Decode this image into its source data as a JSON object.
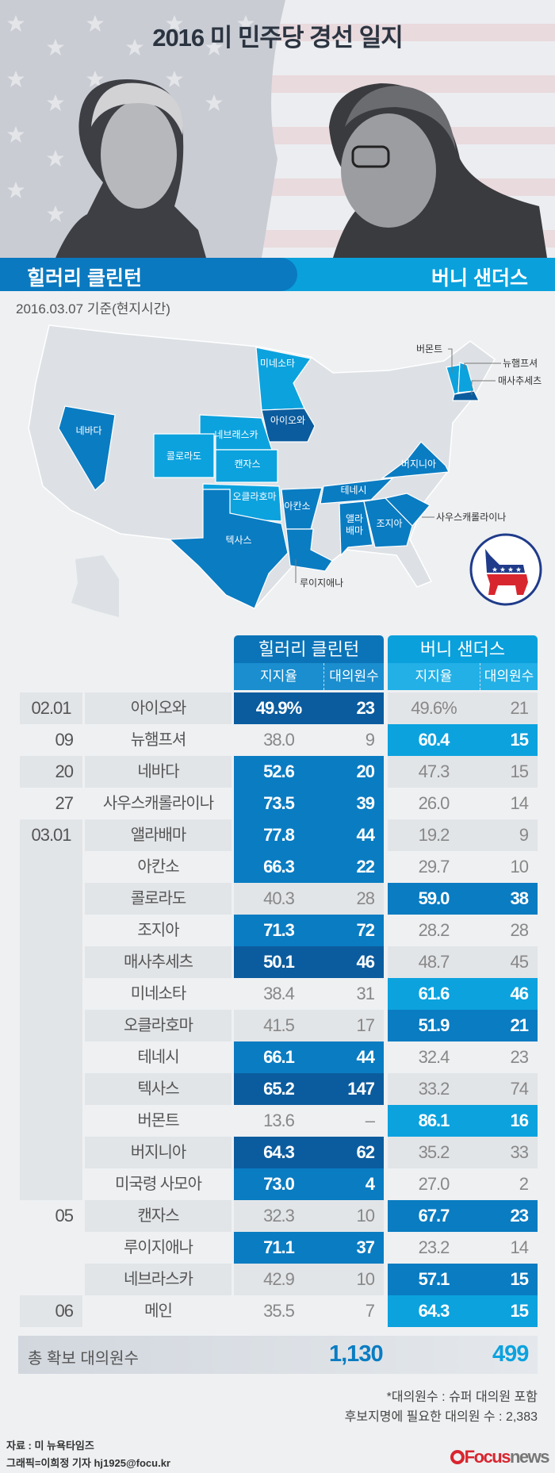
{
  "title": "2016 미 민주당 경선 일지",
  "candidates": {
    "hillary": "힐러리 클린턴",
    "bernie": "버니 샌더스"
  },
  "as_of": "2016.03.07 기준(현지시간)",
  "colors": {
    "dark": "#0b5c9e",
    "medium": "#0a7cc2",
    "light": "#0ca2de",
    "row_grey": "#e2e5e8",
    "row_light": "#eef0f2",
    "hillary": "#0a79c0",
    "bernie": "#0aa0dc",
    "map_base": "#dde1e5"
  },
  "map": {
    "states": [
      {
        "label": "네바다",
        "shade": "medium"
      },
      {
        "label": "미네소타",
        "shade": "light"
      },
      {
        "label": "아이오와",
        "shade": "dark"
      },
      {
        "label": "네브래스카",
        "shade": "light"
      },
      {
        "label": "콜로라도",
        "shade": "light"
      },
      {
        "label": "캔자스",
        "shade": "light"
      },
      {
        "label": "오클라호마",
        "shade": "light"
      },
      {
        "label": "텍사스",
        "shade": "medium"
      },
      {
        "label": "아칸소",
        "shade": "medium"
      },
      {
        "label": "루이지애나",
        "shade": "medium"
      },
      {
        "label": "테네시",
        "shade": "medium"
      },
      {
        "label": "앨라배마",
        "shade": "medium"
      },
      {
        "label": "조지아",
        "shade": "medium"
      },
      {
        "label": "사우스캐롤라이나",
        "shade": "medium"
      },
      {
        "label": "버지니아",
        "shade": "medium"
      },
      {
        "label": "버몬트",
        "shade": "light"
      },
      {
        "label": "뉴햄프셔",
        "shade": "light"
      },
      {
        "label": "매사추세츠",
        "shade": "dark"
      }
    ],
    "alabama_line1": "앨라",
    "alabama_line2": "배마",
    "logo": "democratic-donkey-icon"
  },
  "table": {
    "group_headers": [
      "힐러리 클린턴",
      "버니 샌더스"
    ],
    "sub_headers": [
      "지지율",
      "대의원수",
      "지지율",
      "대의원수"
    ],
    "date_groups": [
      {
        "label": "02.01",
        "rows": 1,
        "shaded": true
      },
      {
        "label": "09",
        "rows": 1,
        "shaded": false
      },
      {
        "label": "20",
        "rows": 1,
        "shaded": true
      },
      {
        "label": "27",
        "rows": 1,
        "shaded": false
      },
      {
        "label": "03.01",
        "rows": 12,
        "shaded": true
      },
      {
        "label": "05",
        "rows": 3,
        "shaded": false
      },
      {
        "label": "06",
        "rows": 1,
        "shaded": true
      }
    ],
    "rows": [
      {
        "state": "아이오와",
        "h_pct": "49.9%",
        "h_del": "23",
        "b_pct": "49.6%",
        "b_del": "21",
        "winner": "hillary",
        "shade": "dark"
      },
      {
        "state": "뉴햄프셔",
        "h_pct": "38.0",
        "h_del": "9",
        "b_pct": "60.4",
        "b_del": "15",
        "winner": "bernie",
        "shade": "light"
      },
      {
        "state": "네바다",
        "h_pct": "52.6",
        "h_del": "20",
        "b_pct": "47.3",
        "b_del": "15",
        "winner": "hillary",
        "shade": "medium"
      },
      {
        "state": "사우스캐롤라이나",
        "h_pct": "73.5",
        "h_del": "39",
        "b_pct": "26.0",
        "b_del": "14",
        "winner": "hillary",
        "shade": "medium"
      },
      {
        "state": "앨라배마",
        "h_pct": "77.8",
        "h_del": "44",
        "b_pct": "19.2",
        "b_del": "9",
        "winner": "hillary",
        "shade": "medium"
      },
      {
        "state": "아칸소",
        "h_pct": "66.3",
        "h_del": "22",
        "b_pct": "29.7",
        "b_del": "10",
        "winner": "hillary",
        "shade": "medium"
      },
      {
        "state": "콜로라도",
        "h_pct": "40.3",
        "h_del": "28",
        "b_pct": "59.0",
        "b_del": "38",
        "winner": "bernie",
        "shade": "medium"
      },
      {
        "state": "조지아",
        "h_pct": "71.3",
        "h_del": "72",
        "b_pct": "28.2",
        "b_del": "28",
        "winner": "hillary",
        "shade": "medium"
      },
      {
        "state": "매사추세츠",
        "h_pct": "50.1",
        "h_del": "46",
        "b_pct": "48.7",
        "b_del": "45",
        "winner": "hillary",
        "shade": "dark"
      },
      {
        "state": "미네소타",
        "h_pct": "38.4",
        "h_del": "31",
        "b_pct": "61.6",
        "b_del": "46",
        "winner": "bernie",
        "shade": "light"
      },
      {
        "state": "오클라호마",
        "h_pct": "41.5",
        "h_del": "17",
        "b_pct": "51.9",
        "b_del": "21",
        "winner": "bernie",
        "shade": "medium"
      },
      {
        "state": "테네시",
        "h_pct": "66.1",
        "h_del": "44",
        "b_pct": "32.4",
        "b_del": "23",
        "winner": "hillary",
        "shade": "medium"
      },
      {
        "state": "텍사스",
        "h_pct": "65.2",
        "h_del": "147",
        "b_pct": "33.2",
        "b_del": "74",
        "winner": "hillary",
        "shade": "dark"
      },
      {
        "state": "버몬트",
        "h_pct": "13.6",
        "h_del": "–",
        "b_pct": "86.1",
        "b_del": "16",
        "winner": "bernie",
        "shade": "light"
      },
      {
        "state": "버지니아",
        "h_pct": "64.3",
        "h_del": "62",
        "b_pct": "35.2",
        "b_del": "33",
        "winner": "hillary",
        "shade": "dark"
      },
      {
        "state": "미국령 사모아",
        "h_pct": "73.0",
        "h_del": "4",
        "b_pct": "27.0",
        "b_del": "2",
        "winner": "hillary",
        "shade": "medium"
      },
      {
        "state": "캔자스",
        "h_pct": "32.3",
        "h_del": "10",
        "b_pct": "67.7",
        "b_del": "23",
        "winner": "bernie",
        "shade": "medium"
      },
      {
        "state": "루이지애나",
        "h_pct": "71.1",
        "h_del": "37",
        "b_pct": "23.2",
        "b_del": "14",
        "winner": "hillary",
        "shade": "medium"
      },
      {
        "state": "네브라스카",
        "h_pct": "42.9",
        "h_del": "10",
        "b_pct": "57.1",
        "b_del": "15",
        "winner": "bernie",
        "shade": "medium"
      },
      {
        "state": "메인",
        "h_pct": "35.5",
        "h_del": "7",
        "b_pct": "64.3",
        "b_del": "15",
        "winner": "bernie",
        "shade": "light"
      }
    ],
    "total": {
      "label": "총 확보 대의원수",
      "hillary": "1,130",
      "bernie": "499"
    }
  },
  "notes": [
    "*대의원수 : 슈퍼 대의원 포함",
    "후보지명에 필요한 대의원 수 : 2,383"
  ],
  "source": "자료 : 미 뉴욕타임즈",
  "credit": "그래픽=이희정 기자 hj1925@focu.kr",
  "logo_text": "Focusnews"
}
